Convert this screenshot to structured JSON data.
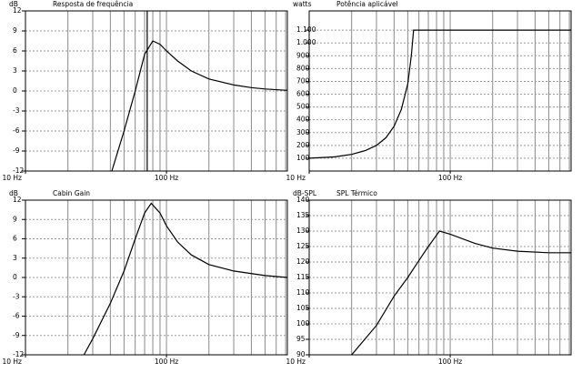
{
  "chart_data": [
    {
      "type": "line",
      "title": "Resposta de frequência",
      "ylabel": "dB",
      "xlim": [
        10,
        720
      ],
      "log_x": true,
      "ylim": [
        -12,
        12
      ],
      "xticks": [
        {
          "value": 10,
          "label": "10 Hz"
        },
        {
          "value": 100,
          "label": "100 Hz"
        }
      ],
      "xgrid": [
        20,
        30,
        40,
        50,
        60,
        70,
        80,
        90,
        100,
        200,
        300,
        400,
        500,
        600,
        700
      ],
      "yticks": [
        12,
        9,
        6,
        3,
        0,
        -3,
        -6,
        -9,
        -12
      ],
      "marker_x": 73,
      "series": [
        {
          "color": "#000000",
          "x": [
            41,
            50,
            60,
            70,
            80,
            90,
            100,
            120,
            150,
            200,
            300,
            400,
            500,
            720
          ],
          "values": [
            -12,
            -6,
            0,
            5.5,
            7.5,
            7,
            6,
            4.5,
            3,
            1.8,
            0.9,
            0.5,
            0.3,
            0.1
          ]
        }
      ]
    },
    {
      "type": "line",
      "title": "Potência aplicável",
      "ylabel": "watts",
      "xlim": [
        10,
        720
      ],
      "log_x": true,
      "ylim": [
        0,
        1250
      ],
      "xticks": [
        {
          "value": 10,
          "label": "10 Hz"
        },
        {
          "value": 100,
          "label": "100 Hz"
        }
      ],
      "xgrid": [
        20,
        30,
        40,
        50,
        60,
        70,
        80,
        90,
        100,
        200,
        300,
        400,
        500,
        600,
        700
      ],
      "yticks": [
        {
          "value": 1100,
          "label": "1.100"
        },
        {
          "value": 1000,
          "label": "1.000"
        },
        900,
        800,
        700,
        600,
        500,
        400,
        300,
        200,
        100
      ],
      "series": [
        {
          "color": "#000000",
          "x": [
            10,
            15,
            20,
            25,
            30,
            35,
            40,
            45,
            50,
            53,
            55,
            720
          ],
          "values": [
            100,
            110,
            130,
            160,
            200,
            260,
            350,
            480,
            680,
            900,
            1100,
            1100
          ]
        }
      ]
    },
    {
      "type": "line",
      "title": "Cabin Gain",
      "ylabel": "dB",
      "xlim": [
        10,
        720
      ],
      "log_x": true,
      "ylim": [
        -12,
        12
      ],
      "xticks": [
        {
          "value": 10,
          "label": "10 Hz"
        },
        {
          "value": 100,
          "label": "100 Hz"
        }
      ],
      "xgrid": [
        20,
        30,
        40,
        50,
        60,
        70,
        80,
        90,
        100,
        200,
        300,
        400,
        500,
        600,
        700
      ],
      "yticks": [
        12,
        9,
        6,
        3,
        0,
        -3,
        -6,
        -9,
        -12
      ],
      "series": [
        {
          "color": "#000000",
          "x": [
            26,
            30,
            40,
            50,
            60,
            70,
            78,
            90,
            100,
            120,
            150,
            200,
            300,
            500,
            720
          ],
          "values": [
            -12,
            -9.5,
            -4,
            1,
            6,
            10,
            11.5,
            10,
            8,
            5.5,
            3.5,
            2,
            1,
            0.3,
            0
          ]
        }
      ]
    },
    {
      "type": "line",
      "title": "SPL Térmico",
      "ylabel": "dB-SPL",
      "xlim": [
        10,
        720
      ],
      "log_x": true,
      "ylim": [
        90,
        140
      ],
      "xticks": [
        {
          "value": 10,
          "label": "10 Hz"
        },
        {
          "value": 100,
          "label": "100 Hz"
        }
      ],
      "xgrid": [
        20,
        30,
        40,
        50,
        60,
        70,
        80,
        90,
        100,
        200,
        300,
        400,
        500,
        600,
        700
      ],
      "yticks": [
        140,
        135,
        130,
        125,
        120,
        115,
        110,
        105,
        100,
        95,
        90
      ],
      "series": [
        {
          "color": "#000000",
          "x": [
            20,
            30,
            40,
            50,
            60,
            70,
            84,
            100,
            150,
            200,
            300,
            500,
            720
          ],
          "values": [
            90,
            99.5,
            109,
            115,
            120.5,
            125,
            130,
            129,
            126,
            124.5,
            123.5,
            123,
            123
          ]
        }
      ]
    }
  ]
}
